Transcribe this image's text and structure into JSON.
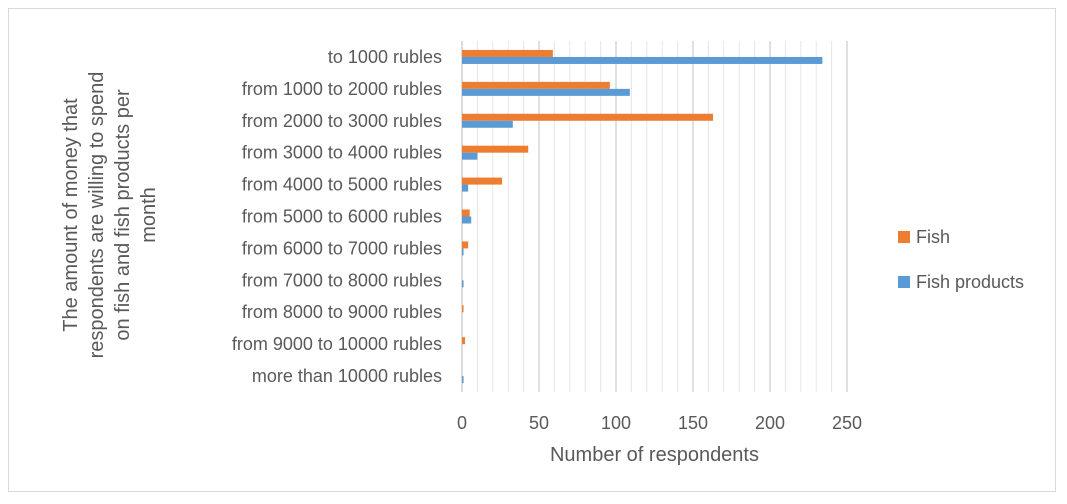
{
  "chart_data": {
    "type": "bar",
    "orientation": "horizontal",
    "categories": [
      "to 1000 rubles",
      "from 1000 to 2000 rubles",
      "from 2000 to 3000 rubles",
      "from 3000 to 4000 rubles",
      "from 4000 to 5000 rubles",
      "from 5000 to 6000 rubles",
      "from 6000 to 7000 rubles",
      "from 7000 to 8000 rubles",
      "from 8000 to 9000 rubles",
      "from 9000 to 10000 rubles",
      "more than 10000 rubles"
    ],
    "series": [
      {
        "name": "Fish",
        "color": "#ED7D31",
        "values": [
          59,
          96,
          163,
          43,
          26,
          5,
          4,
          0,
          1,
          2,
          0
        ]
      },
      {
        "name": "Fish products",
        "color": "#5B9BD5",
        "values": [
          234,
          109,
          33,
          10,
          4,
          6,
          1,
          1,
          0,
          0,
          1
        ]
      }
    ],
    "title": "",
    "xlabel": "Number of respondents",
    "ylabel": "The amount of money that respondents are willing to spend on fish and fish products per month",
    "ylabel_lines": [
      "The amount of money that",
      "respondents are willing to spend",
      "on fish and fish products per",
      "month"
    ],
    "xlim": [
      0,
      250
    ],
    "major_ticks": [
      0,
      50,
      100,
      150,
      200,
      250
    ],
    "minor_step": 10,
    "grid": true,
    "legend_position": "right"
  }
}
